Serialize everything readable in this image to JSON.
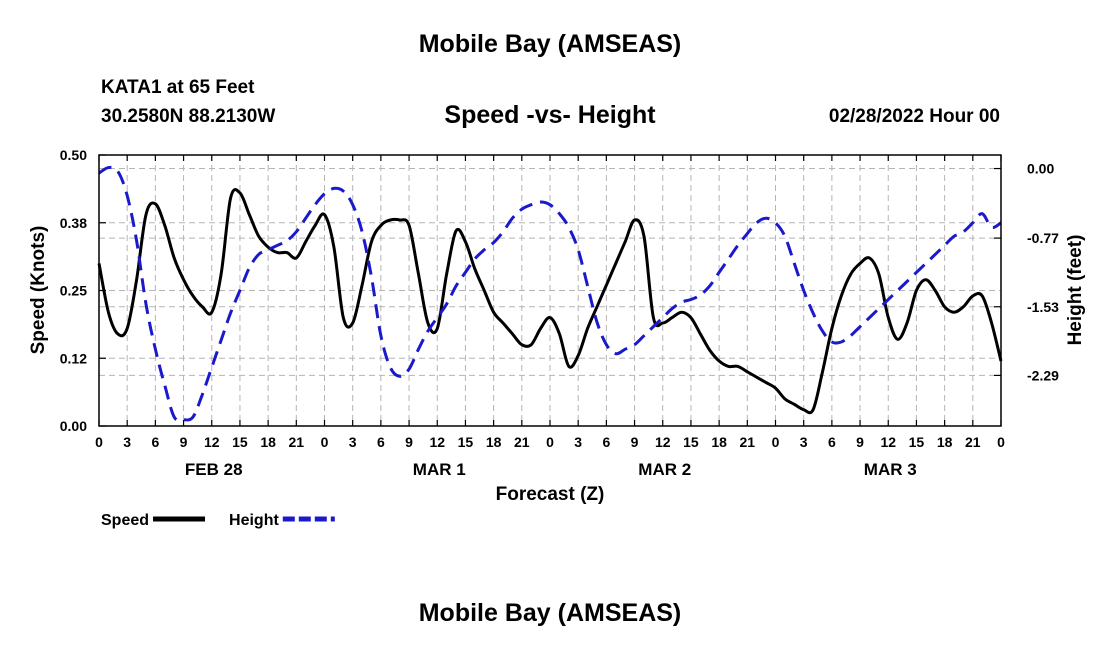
{
  "header": {
    "title": "Mobile Bay (AMSEAS)",
    "station": "KATA1 at 65 Feet",
    "coords": "30.2580N  88.2130W",
    "subtitle": "Speed -vs- Height",
    "run_time": "02/28/2022 Hour 00"
  },
  "footer": {
    "title": "Mobile Bay (AMSEAS)"
  },
  "chart_data": {
    "type": "line",
    "xlabel": "Forecast (Z)",
    "ylabel_left": "Speed (Knots)",
    "ylabel_right": "Height (feet)",
    "x_range_hours": [
      0,
      96
    ],
    "left_ylim": [
      0,
      0.5
    ],
    "right_ylim": [
      -2.85,
      0.15
    ],
    "left_ticks": [
      "0.00",
      "0.12",
      "0.25",
      "0.38",
      "0.50"
    ],
    "left_tick_values": [
      0,
      0.125,
      0.25,
      0.375,
      0.5
    ],
    "right_ticks": [
      "0.00",
      "-0.77",
      "-1.53",
      "-2.29"
    ],
    "right_tick_values": [
      0,
      -0.77,
      -1.53,
      -2.29
    ],
    "x_tick_hours": [
      0,
      3,
      6,
      9,
      12,
      15,
      18,
      21,
      24,
      27,
      30,
      33,
      36,
      39,
      42,
      45,
      48,
      51,
      54,
      57,
      60,
      63,
      66,
      69,
      72,
      75,
      78,
      81,
      84,
      87,
      90,
      93,
      96
    ],
    "x_tick_labels": [
      "0",
      "3",
      "6",
      "9",
      "12",
      "15",
      "18",
      "21",
      "0",
      "3",
      "6",
      "9",
      "12",
      "15",
      "18",
      "21",
      "0",
      "3",
      "6",
      "9",
      "12",
      "15",
      "18",
      "21",
      "0",
      "3",
      "6",
      "9",
      "12",
      "15",
      "18",
      "21",
      "0"
    ],
    "day_labels": [
      {
        "label": "FEB 28",
        "hour": 12
      },
      {
        "label": "MAR 1",
        "hour": 36
      },
      {
        "label": "MAR 2",
        "hour": 60
      },
      {
        "label": "MAR 3",
        "hour": 84
      }
    ],
    "grid": true,
    "series": [
      {
        "name": "Speed",
        "axis": "left",
        "color": "#000000",
        "dashed": false,
        "x": [
          0,
          1,
          2,
          3,
          4,
          5,
          6,
          7,
          8,
          9,
          10,
          11,
          12,
          13,
          14,
          15,
          16,
          17,
          18,
          19,
          20,
          21,
          22,
          23,
          24,
          25,
          26,
          27,
          28,
          29,
          30,
          31,
          32,
          33,
          34,
          35,
          36,
          37,
          38,
          39,
          40,
          41,
          42,
          43,
          44,
          45,
          46,
          47,
          48,
          49,
          50,
          51,
          52,
          53,
          54,
          55,
          56,
          57,
          58,
          59,
          60,
          61,
          62,
          63,
          64,
          65,
          66,
          67,
          68,
          69,
          70,
          71,
          72,
          73,
          74,
          75,
          76,
          77,
          78,
          79,
          80,
          81,
          82,
          83,
          84,
          85,
          86,
          87,
          88,
          89,
          90,
          91,
          92,
          93,
          94,
          95,
          96
        ],
        "values": [
          0.3,
          0.21,
          0.17,
          0.18,
          0.27,
          0.39,
          0.41,
          0.37,
          0.31,
          0.27,
          0.24,
          0.22,
          0.21,
          0.28,
          0.42,
          0.43,
          0.39,
          0.35,
          0.33,
          0.32,
          0.32,
          0.31,
          0.34,
          0.37,
          0.39,
          0.33,
          0.2,
          0.19,
          0.26,
          0.34,
          0.37,
          0.38,
          0.38,
          0.37,
          0.28,
          0.19,
          0.18,
          0.28,
          0.36,
          0.34,
          0.29,
          0.25,
          0.21,
          0.19,
          0.17,
          0.15,
          0.15,
          0.18,
          0.2,
          0.17,
          0.11,
          0.13,
          0.18,
          0.22,
          0.26,
          0.3,
          0.34,
          0.38,
          0.35,
          0.2,
          0.19,
          0.2,
          0.21,
          0.2,
          0.17,
          0.14,
          0.12,
          0.11,
          0.11,
          0.1,
          0.09,
          0.08,
          0.07,
          0.05,
          0.04,
          0.03,
          0.03,
          0.1,
          0.18,
          0.24,
          0.28,
          0.3,
          0.31,
          0.28,
          0.2,
          0.16,
          0.19,
          0.25,
          0.27,
          0.25,
          0.22,
          0.21,
          0.22,
          0.24,
          0.24,
          0.19,
          0.12
        ]
      },
      {
        "name": "Height",
        "axis": "right",
        "color": "#1a1acc",
        "dashed": true,
        "x": [
          0,
          1,
          2,
          3,
          4,
          5,
          6,
          7,
          8,
          9,
          10,
          11,
          12,
          13,
          14,
          15,
          16,
          17,
          18,
          19,
          20,
          21,
          22,
          23,
          24,
          25,
          26,
          27,
          28,
          29,
          30,
          31,
          32,
          33,
          34,
          35,
          36,
          37,
          38,
          39,
          40,
          41,
          42,
          43,
          44,
          45,
          46,
          47,
          48,
          49,
          50,
          51,
          52,
          53,
          54,
          55,
          56,
          57,
          58,
          59,
          60,
          61,
          62,
          63,
          64,
          65,
          66,
          67,
          68,
          69,
          70,
          71,
          72,
          73,
          74,
          75,
          76,
          77,
          78,
          79,
          80,
          81,
          82,
          83,
          84,
          85,
          86,
          87,
          88,
          89,
          90,
          91,
          92,
          93,
          94,
          95,
          96
        ],
        "values": [
          -0.05,
          0.01,
          -0.03,
          -0.3,
          -0.8,
          -1.5,
          -2.0,
          -2.4,
          -2.75,
          -2.78,
          -2.75,
          -2.5,
          -2.2,
          -1.9,
          -1.6,
          -1.35,
          -1.1,
          -0.95,
          -0.9,
          -0.85,
          -0.8,
          -0.7,
          -0.55,
          -0.4,
          -0.28,
          -0.22,
          -0.25,
          -0.4,
          -0.7,
          -1.2,
          -1.85,
          -2.2,
          -2.3,
          -2.22,
          -2.0,
          -1.8,
          -1.65,
          -1.5,
          -1.3,
          -1.15,
          -1.0,
          -0.9,
          -0.82,
          -0.7,
          -0.55,
          -0.45,
          -0.4,
          -0.37,
          -0.4,
          -0.5,
          -0.65,
          -0.9,
          -1.3,
          -1.7,
          -1.95,
          -2.05,
          -2.0,
          -1.95,
          -1.85,
          -1.75,
          -1.65,
          -1.55,
          -1.48,
          -1.45,
          -1.4,
          -1.3,
          -1.15,
          -1.0,
          -0.85,
          -0.72,
          -0.6,
          -0.55,
          -0.6,
          -0.75,
          -1.05,
          -1.35,
          -1.6,
          -1.8,
          -1.92,
          -1.92,
          -1.85,
          -1.75,
          -1.65,
          -1.55,
          -1.45,
          -1.35,
          -1.25,
          -1.15,
          -1.05,
          -0.95,
          -0.85,
          -0.75,
          -0.7,
          -0.6,
          -0.5,
          -0.65,
          -0.6
        ]
      }
    ],
    "legend": {
      "position": "bottom-left",
      "entries": [
        {
          "label": "Speed",
          "color": "#000000",
          "dashed": false
        },
        {
          "label": "Height",
          "color": "#1a1acc",
          "dashed": true
        }
      ]
    }
  }
}
